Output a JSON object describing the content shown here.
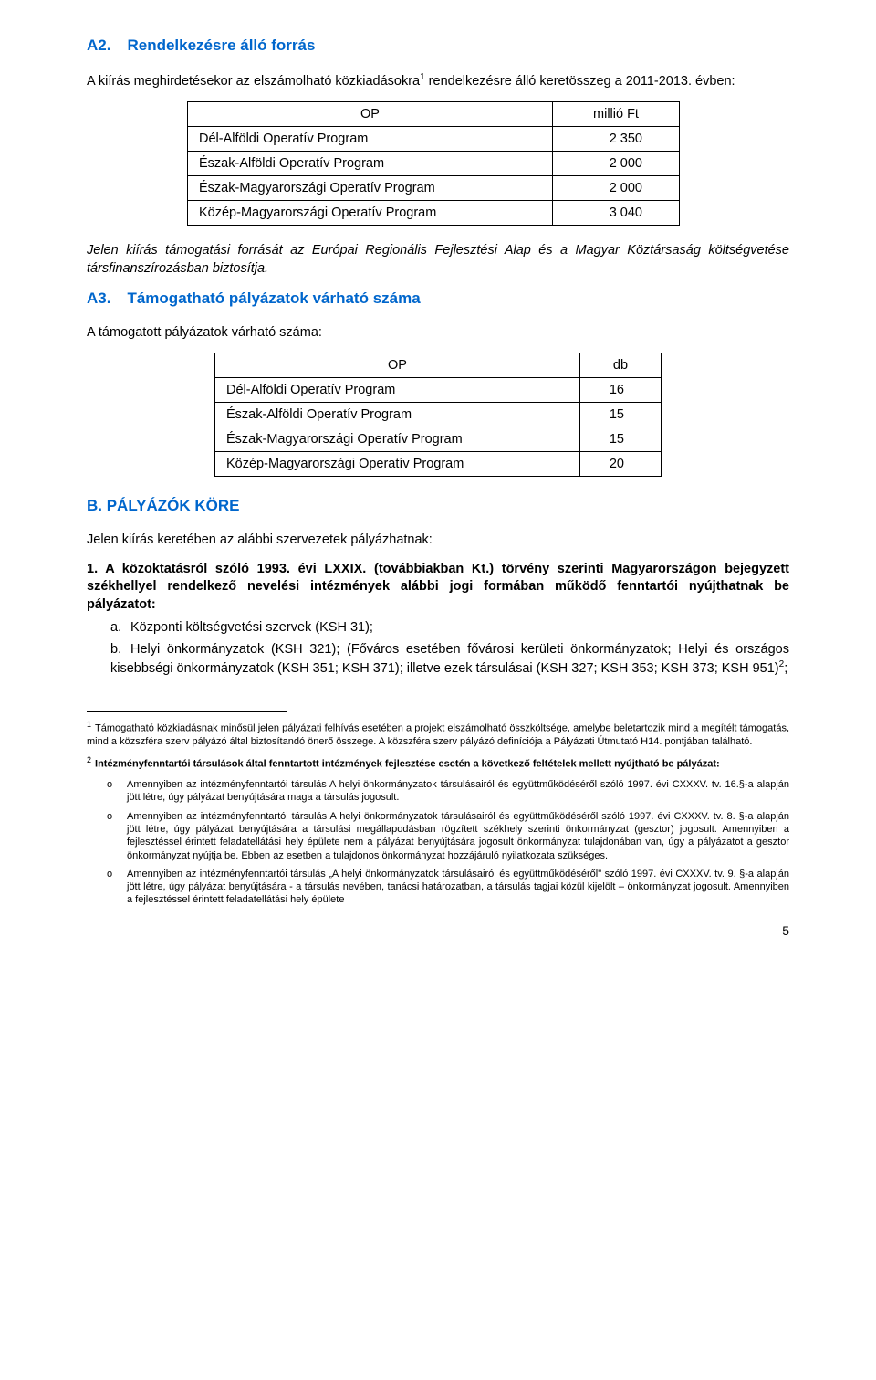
{
  "sectionA2": {
    "heading_num": "A2.",
    "heading_text": "Rendelkezésre álló forrás",
    "intro_a": "A kiírás meghirdetésekor az elszámolható közkiadásokra",
    "intro_sup": "1",
    "intro_b": " rendelkezésre álló keretösszeg a 2011-2013. évben:",
    "table": {
      "head_op": "OP",
      "head_val": "millió Ft",
      "rows": [
        {
          "name": "Dél-Alföldi Operatív Program",
          "val": "2 350"
        },
        {
          "name": "Észak-Alföldi Operatív Program",
          "val": "2 000"
        },
        {
          "name": "Észak-Magyarországi Operatív Program",
          "val": "2 000"
        },
        {
          "name": "Közép-Magyarországi Operatív Program",
          "val": "3 040"
        }
      ]
    },
    "note": "Jelen kiírás támogatási forrását az Európai Regionális Fejlesztési Alap és a Magyar Köztársaság költségvetése társfinanszírozásban biztosítja."
  },
  "sectionA3": {
    "heading_num": "A3.",
    "heading_text": "Támogatható pályázatok várható száma",
    "intro": "A támogatott pályázatok várható száma:",
    "table": {
      "head_op": "OP",
      "head_val": "db",
      "rows": [
        {
          "name": "Dél-Alföldi Operatív Program",
          "val": "16"
        },
        {
          "name": "Észak-Alföldi Operatív Program",
          "val": "15"
        },
        {
          "name": "Észak-Magyarországi Operatív Program",
          "val": "15"
        },
        {
          "name": "Közép-Magyarországi Operatív Program",
          "val": "20"
        }
      ]
    }
  },
  "sectionB": {
    "heading": "B. PÁLYÁZÓK KÖRE",
    "intro": "Jelen kiírás keretében az alábbi szervezetek pályázhatnak:",
    "item1": {
      "marker": "1.",
      "lead": "A közoktatásról szóló 1993. évi LXXIX. (továbbiakban Kt.) törvény szerinti Magyarországon bejegyzett székhellyel rendelkező nevelési intézmények alábbi jogi formában működő fenntartói nyújthatnak be pályázatot:",
      "sub_a_marker": "a.",
      "sub_a": "Központi költségvetési szervek (KSH 31);",
      "sub_b_marker": "b.",
      "sub_b_a": "Helyi önkormányzatok (KSH 321); (Főváros esetében fővárosi kerületi önkormányzatok; Helyi és országos kisebbségi önkormányzatok (KSH 351; KSH 371); illetve ezek társulásai (KSH 327; KSH 353; KSH 373; KSH 951)",
      "sub_b_sup": "2",
      "sub_b_b": ";"
    }
  },
  "footnotes": {
    "fn1_num": "1",
    "fn1": "Támogatható közkiadásnak minősül jelen pályázati felhívás esetében a projekt elszámolható összköltsége, amelybe beletartozik mind a megítélt támogatás, mind a közszféra szerv pályázó által biztosítandó önerő összege. A közszféra szerv pályázó definíciója a Pályázati Útmutató H14. pontjában található.",
    "fn2_num": "2",
    "fn2_lead": "Intézményfenntartói társulások által fenntartott intézmények fejlesztése esetén a következő feltételek mellett nyújtható be pályázat:",
    "fn2_items": [
      "Amennyiben az intézményfenntartói társulás A helyi önkormányzatok társulásairól és együttműködéséről szóló 1997. évi CXXXV. tv. 16.§-a alapján jött létre, úgy pályázat benyújtására maga a társulás jogosult.",
      "Amennyiben az intézményfenntartói társulás A helyi önkormányzatok társulásairól és együttműködéséről szóló 1997. évi CXXXV. tv. 8. §-a alapján jött létre, úgy pályázat benyújtására a társulási megállapodásban rögzített székhely szerinti önkormányzat (gesztor) jogosult. Amennyiben a fejlesztéssel érintett feladatellátási hely épülete nem a pályázat benyújtására jogosult önkormányzat tulajdonában van, úgy a pályázatot a gesztor önkormányzat nyújtja be. Ebben az esetben a tulajdonos önkormányzat hozzájáruló nyilatkozata szükséges.",
      "Amennyiben az intézményfenntartói társulás „A helyi önkormányzatok társulásairól és együttműködéséről\" szóló 1997. évi CXXXV. tv. 9. §-a alapján jött létre, úgy pályázat benyújtására - a társulás nevében, tanácsi határozatban, a társulás tagjai közül kijelölt – önkormányzat jogosult. Amennyiben a fejlesztéssel érintett feladatellátási hely épülete"
    ],
    "bullet": "o"
  },
  "page_number": "5"
}
